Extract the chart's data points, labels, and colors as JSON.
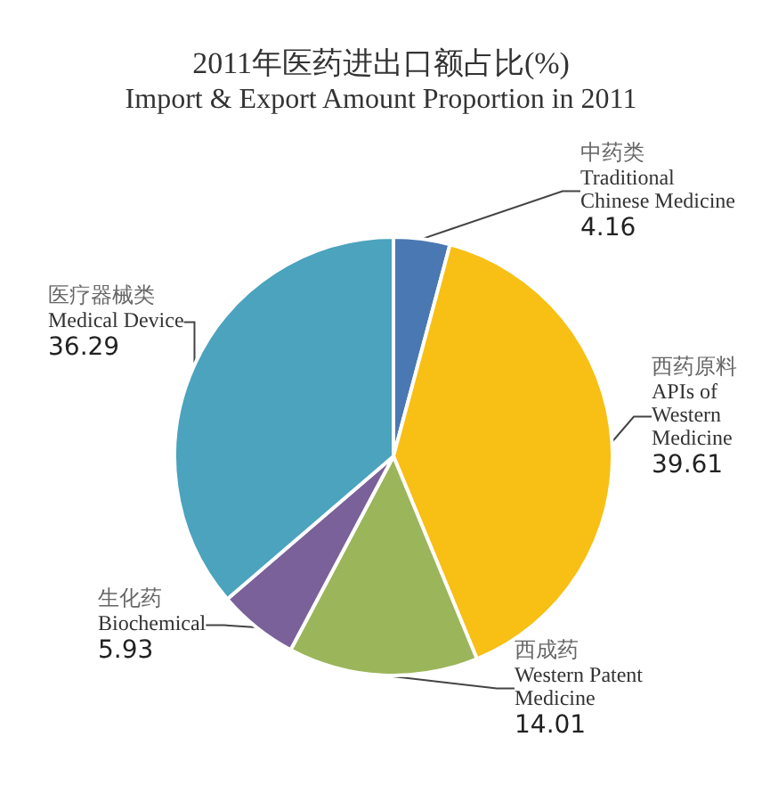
{
  "chart_data": {
    "type": "pie",
    "title": "2011年医药进出口额占比(%)",
    "subtitle": "Import & Export Amount Proportion in 2011",
    "categories": [
      "中药类\nTraditional\nChinese Medicine",
      "西药原料\nAPIs of\nWestern\nMedicine",
      "西成药\nWestern Patent\nMedicine",
      "生化药\nBiochemical",
      "医疗器械类\nMedical Device"
    ],
    "values": [
      4.16,
      39.61,
      14.01,
      5.93,
      36.29
    ],
    "colors": [
      "#4a78b2",
      "#f8bf14",
      "#9bb55a",
      "#7a6199",
      "#4ba3bd"
    ],
    "data_labels": true
  }
}
